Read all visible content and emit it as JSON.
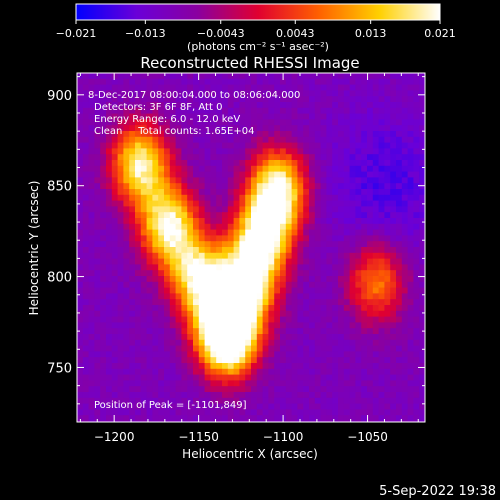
{
  "chart_data": {
    "type": "heatmap",
    "title": "Reconstructed RHESSI Image",
    "xlabel": "Heliocentric X (arcsec)",
    "ylabel": "Heliocentric Y (arcsec)",
    "xlim": [
      -1222,
      -1016
    ],
    "ylim": [
      720,
      912
    ],
    "x_ticks": [
      -1200,
      -1150,
      -1100,
      -1050
    ],
    "x_tick_labels": [
      "−1200",
      "−1150",
      "−1100",
      "−1050"
    ],
    "y_ticks": [
      750,
      800,
      850,
      900
    ],
    "y_tick_labels": [
      "750",
      "800",
      "850",
      "900"
    ],
    "colorbar": {
      "range": [
        -0.021,
        0.021
      ],
      "ticks": [
        -0.021,
        -0.013,
        -0.0043,
        0.0043,
        0.013,
        0.021
      ],
      "tick_labels": [
        "−0.021",
        "−0.013",
        "−0.0043",
        "0.0043",
        "0.013",
        "0.021"
      ],
      "units": "(photons cm⁻² s⁻¹ asec⁻²)"
    },
    "annotations": [
      "8-Dec-2017 08:00:04.000 to 08:06:04.000",
      "Detectors: 3F 6F 8F, Att 0",
      "Energy Range: 6.0 - 12.0 keV",
      "Clean     Total counts: 1.65E+04"
    ],
    "peak_label": "Position of Peak = [-1101,849]",
    "peak": [
      -1101,
      849
    ],
    "sources": [
      {
        "x": -1185,
        "y": 862,
        "peak": 0.019
      },
      {
        "x": -1168,
        "y": 828,
        "peak": 0.02
      },
      {
        "x": -1150,
        "y": 800,
        "peak": 0.017
      },
      {
        "x": -1135,
        "y": 772,
        "peak": 0.016
      },
      {
        "x": -1103,
        "y": 848,
        "peak": 0.021
      },
      {
        "x": -1112,
        "y": 822,
        "peak": 0.019
      },
      {
        "x": -1122,
        "y": 795,
        "peak": 0.02
      },
      {
        "x": -1132,
        "y": 766,
        "peak": 0.015
      },
      {
        "x": -1045,
        "y": 797,
        "peak": 0.009
      }
    ],
    "background_level": -0.01,
    "colormap": [
      "#0000ff",
      "#6a00d8",
      "#8a00a0",
      "#e00030",
      "#ff6000",
      "#ffd000",
      "#ffffff"
    ]
  },
  "footer": {
    "date": "5-Sep-2022 19:38"
  }
}
